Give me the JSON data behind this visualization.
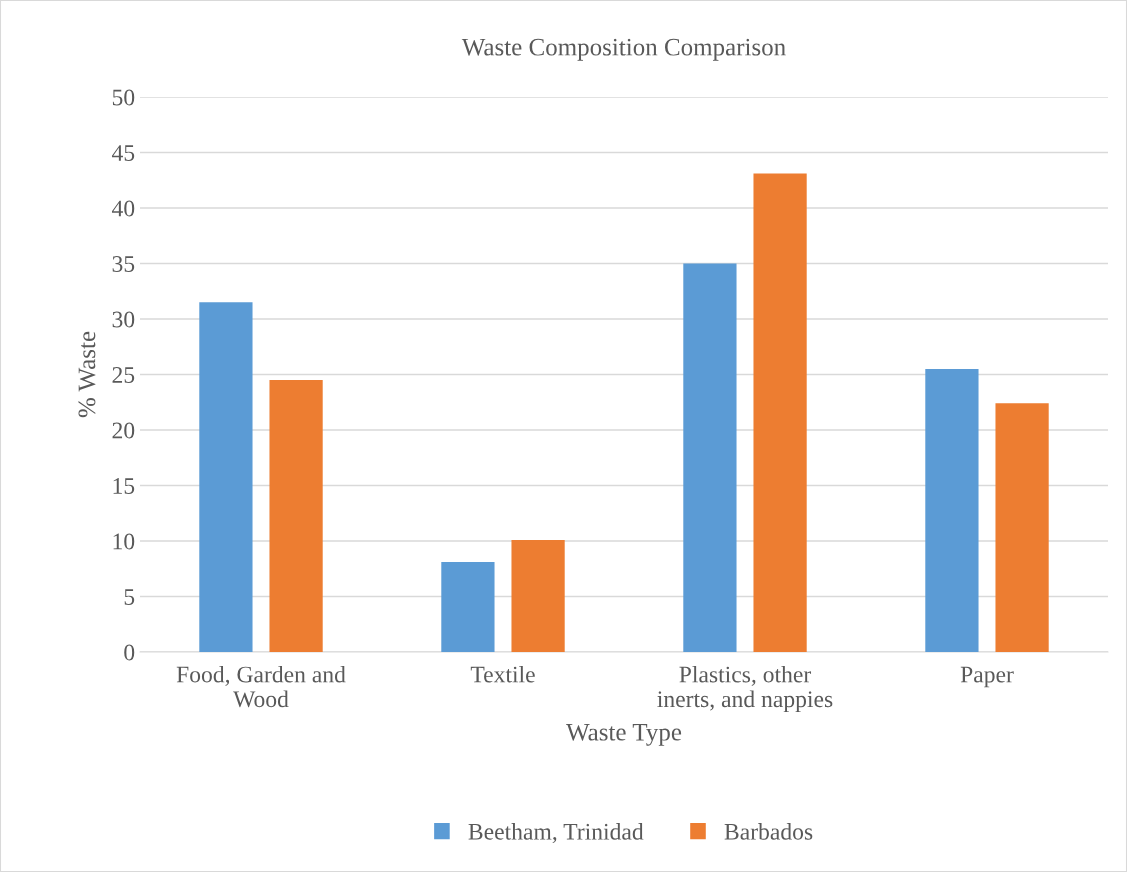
{
  "chart_data": {
    "type": "bar",
    "title": "Waste Composition Comparison",
    "xlabel": "Waste Type",
    "ylabel": "% Waste",
    "categories": [
      "Food, Garden and Wood",
      "Textile",
      "Plastics, other inerts, and nappies",
      "Paper"
    ],
    "series": [
      {
        "name": "Beetham, Trinidad",
        "color": "#5b9bd5",
        "values": [
          31.5,
          8.1,
          35.0,
          25.5
        ]
      },
      {
        "name": "Barbados",
        "color": "#ed7d31",
        "values": [
          24.5,
          10.1,
          43.1,
          22.4
        ]
      }
    ],
    "ylim": [
      0,
      50
    ],
    "yticks": [
      0,
      5,
      10,
      15,
      20,
      25,
      30,
      35,
      40,
      45,
      50
    ],
    "grid": "y",
    "legend": "bottom"
  }
}
